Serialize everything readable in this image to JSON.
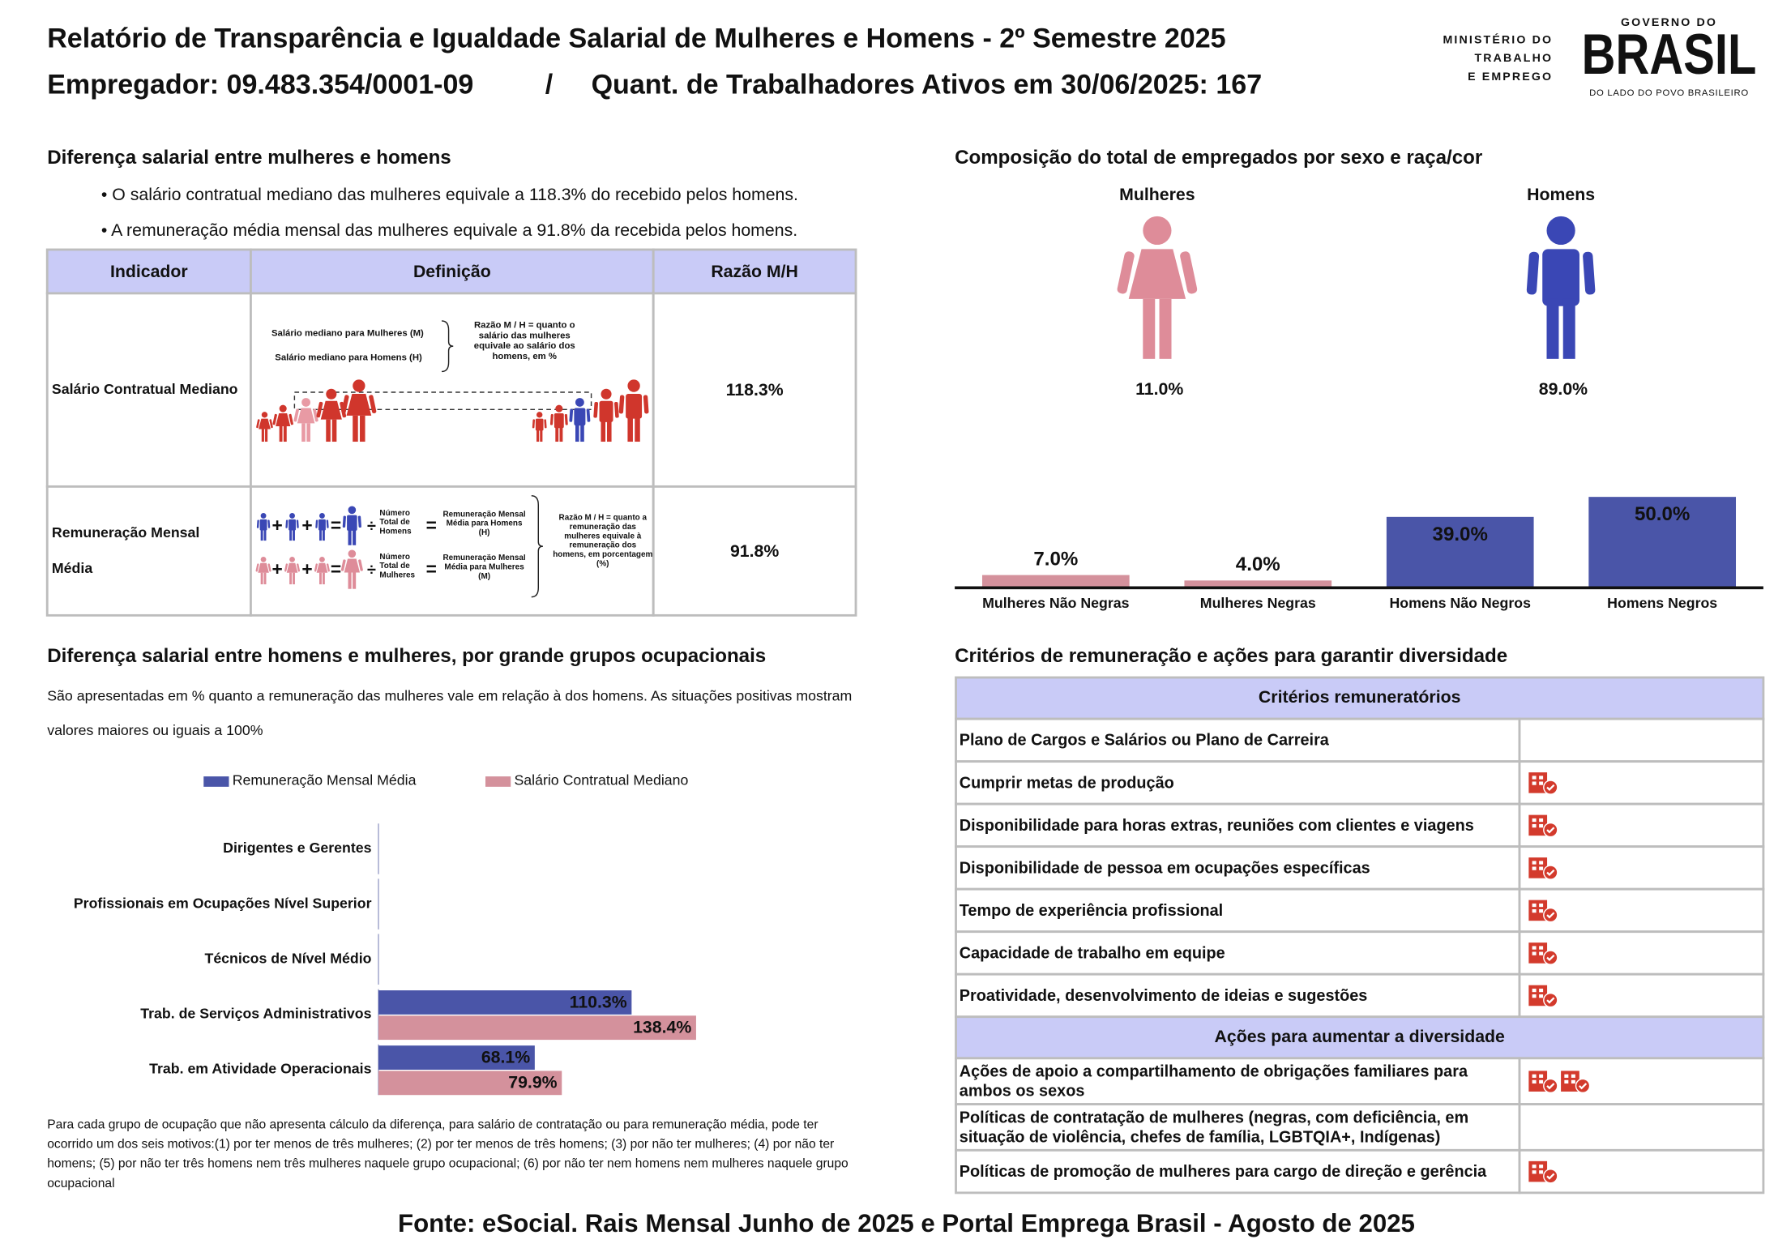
{
  "header": {
    "title": "Relatório de Transparência e Igualdade Salarial de Mulheres e Homens - 2º Semestre 2025",
    "employer": "Empregador: 09.483.354/0001-09",
    "separator": "/",
    "workers": "Quant. de Trabalhadores Ativos em 30/06/2025: 167"
  },
  "logo": {
    "ministry": [
      "MINISTÉRIO DO",
      "TRABALHO",
      "E EMPREGO"
    ],
    "gov_top": "GOVERNO DO",
    "gov_name": "BRASIL",
    "gov_tagline": "DO LADO DO POVO BRASILEIRO"
  },
  "salary_gap": {
    "title": "Diferença salarial entre mulheres e homens",
    "bullets": [
      "• O salário contratual mediano das mulheres equivale a 118.3% do recebido pelos homens.",
      "• A remuneração média mensal das mulheres equivale a 91.8% da recebida pelos homens."
    ],
    "columns": [
      "Indicador",
      "Definição",
      "Razão M/H"
    ],
    "symbols": {
      "plus": "+",
      "equals": "=",
      "divide": "÷"
    },
    "rows": [
      {
        "indicator": "Salário Contratual Mediano",
        "ratio": "118.3%",
        "definition": {
          "women": "Salário mediano para Mulheres (M)",
          "men": "Salário mediano para Homens (H)",
          "note": "Razão M / H = quanto o salário das mulheres equivale ao salário dos homens, em %"
        }
      },
      {
        "indicator": "Remuneração Mensal Média",
        "ratio": "91.8%",
        "definition": {
          "men_count": "Número Total de Homens",
          "men_result": "Remuneração Mensal Média para Homens (H)",
          "women_count": "Número Total de Mulheres",
          "women_result": "Remuneração Mensal Média para Mulheres (M)",
          "note": "Razão M / H = quanto a remuneração das mulheres equivale à remuneração dos homens, em porcentagem (%)"
        }
      }
    ]
  },
  "composition": {
    "title": "Composição do total de empregados por sexo e raça/cor",
    "women": {
      "label": "Mulheres",
      "share": "11.0%",
      "color": "#de8c99"
    },
    "men": {
      "label": "Homens",
      "share": "89.0%",
      "color": "#3a47b5"
    }
  },
  "chart_data": [
    {
      "type": "bar",
      "categories": [
        "Mulheres Não Negras",
        "Mulheres Negras",
        "Homens Não Negros",
        "Homens Negros"
      ],
      "values": [
        7,
        4,
        39,
        50
      ],
      "value_labels": [
        "7.0%",
        "4.0%",
        "39.0%",
        "50.0%"
      ],
      "colors": [
        "#d4919c",
        "#d4919c",
        "#4a55a8",
        "#4a55a8"
      ],
      "ylim": [
        0,
        50
      ]
    },
    {
      "type": "hbar",
      "title": "Diferença salarial entre homens e mulheres, por grande grupos ocupacionais",
      "subtitle": "São apresentadas em % quanto a remuneração das mulheres vale em relação à dos homens. As situações positivas mostram valores maiores ou iguais a 100%",
      "categories": [
        "Dirigentes e Gerentes",
        "Profissionais em Ocupações Nível Superior",
        "Técnicos de Nível Médio",
        "Trab. de Serviços Administrativos",
        "Trab. em Atividade Operacionais"
      ],
      "series": [
        {
          "name": "Remuneração Mensal Média",
          "color": "#4a55a8",
          "values": [
            null,
            null,
            null,
            110.3,
            68.1
          ],
          "value_labels": [
            null,
            null,
            null,
            "110.3%",
            "68.1%"
          ]
        },
        {
          "name": "Salário Contratual Mediano",
          "color": "#d4919c",
          "values": [
            null,
            null,
            null,
            138.4,
            79.9
          ],
          "value_labels": [
            null,
            null,
            null,
            "138.4%",
            "79.9%"
          ]
        }
      ],
      "xlim": [
        0,
        208
      ],
      "legend": "top",
      "note": "Para cada grupo de ocupação que não apresenta cálculo da diferença, para salário de contratação ou para remuneração média, pode ter ocorrido um dos seis motivos:(1) por ter menos de três mulheres; (2) por ter menos de três homens; (3) por não ter mulheres; (4) por não ter homens; (5) por não ter três homens nem três mulheres naquele grupo ocupacional; (6) por não ter nem homens nem mulheres naquele grupo ocupacional"
    }
  ],
  "criteria": {
    "title": "Critérios de remuneração e ações para garantir diversidade",
    "criteria_header": "Critérios remuneratórios",
    "criteria": [
      {
        "label": "Plano de Cargos e Salários ou Plano de Carreira",
        "icons": 0
      },
      {
        "label": "Cumprir metas de produção",
        "icons": 1
      },
      {
        "label": "Disponibilidade para horas extras, reuniões com clientes e viagens",
        "icons": 1
      },
      {
        "label": "Disponibilidade de pessoa em ocupações específicas",
        "icons": 1
      },
      {
        "label": "Tempo de experiência profissional",
        "icons": 1
      },
      {
        "label": "Capacidade de trabalho em equipe",
        "icons": 1
      },
      {
        "label": "Proatividade, desenvolvimento de ideias e sugestões",
        "icons": 1
      }
    ],
    "actions_header": "Ações para aumentar a diversidade",
    "actions": [
      {
        "label": "Ações de apoio a compartilhamento de obrigações familiares para ambos os sexos",
        "icons": 2
      },
      {
        "label": "Políticas de contratação de mulheres (negras, com deficiência, em situação de violência, chefes de família, LGBTQIA+, Indígenas)",
        "icons": 0
      },
      {
        "label": "Políticas de promoção de mulheres para cargo de direção e gerência",
        "icons": 1
      }
    ]
  },
  "footer": {
    "source": "Fonte: eSocial. Rais Mensal Junho de 2025 e Portal Emprega Brasil - Agosto de 2025"
  }
}
